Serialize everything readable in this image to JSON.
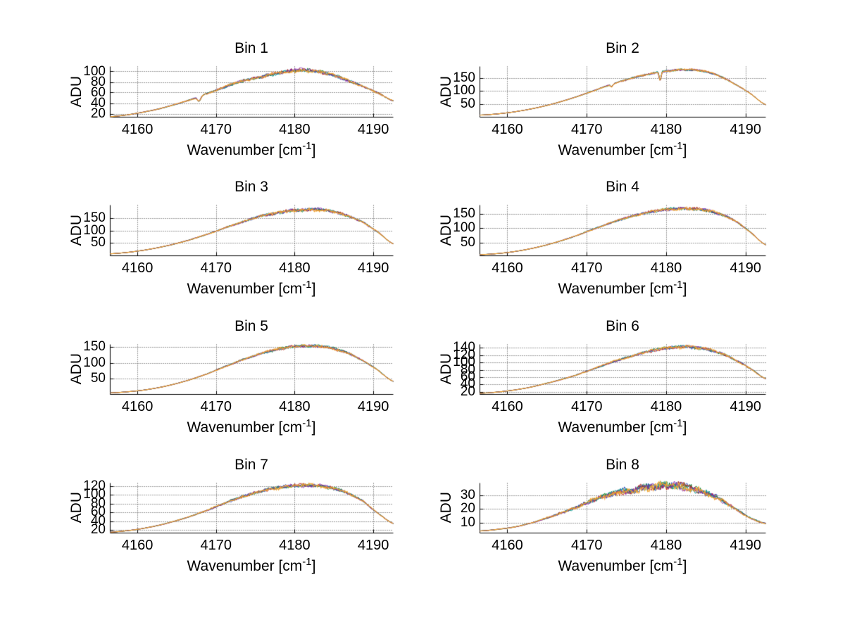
{
  "figure": {
    "background": "#ffffff",
    "axis_color": "#000000",
    "grid_color": "#3c3c3c",
    "line_color": "#f0a22e",
    "under_series_colors": [
      "#2244bb",
      "#118833",
      "#bb2211",
      "#009898",
      "#8822aa"
    ]
  },
  "labels": {
    "ylabel": "ADU",
    "xlabel_pre": "Wavenumber [cm",
    "xlabel_sup": "-1",
    "xlabel_post": "]"
  },
  "chart_data": {
    "type": "line",
    "title": "",
    "xlabel": "Wavenumber [cm^-1]",
    "ylabel": "ADU",
    "grid": true,
    "legend": "none",
    "xlim": [
      4156.5,
      4192.5
    ],
    "xticks": [
      4160,
      4170,
      4180,
      4190
    ],
    "x_grid": [
      4156.5,
      4158.5,
      4160.5,
      4162.5,
      4164.5,
      4166.5,
      4168.5,
      4170.5,
      4172.5,
      4174.5,
      4176.5,
      4178.5,
      4180.5,
      4182.5,
      4184.5,
      4186.5,
      4188.5,
      4190.5,
      4192.5
    ],
    "series_note": "each subplot has 6 nearly-identical overplotted spectra; orange drawn last on top",
    "subplots": [
      {
        "title": "Bin 1",
        "ylim": [
          14,
          110
        ],
        "yticks": [
          20,
          40,
          60,
          80,
          100
        ],
        "envelope": [
          15,
          18,
          23,
          29,
          37,
          46,
          57,
          68,
          79,
          87,
          94,
          99,
          103,
          101,
          95,
          85,
          73,
          60,
          45
        ],
        "noise": 0.45,
        "notches": [
          {
            "x": 4167.8,
            "depth": 9,
            "w": 0.28
          }
        ]
      },
      {
        "title": "Bin 2",
        "ylim": [
          0,
          195
        ],
        "yticks": [
          50,
          100,
          150
        ],
        "envelope": [
          8,
          12,
          19,
          29,
          42,
          58,
          77,
          98,
          120,
          140,
          157,
          170,
          179,
          183,
          178,
          160,
          130,
          92,
          48
        ],
        "noise": 0.35,
        "notches": [
          {
            "x": 4179.2,
            "depth": 34,
            "w": 0.16
          },
          {
            "x": 4173.1,
            "depth": 9,
            "w": 0.18
          }
        ]
      },
      {
        "title": "Bin 3",
        "ylim": [
          0,
          203
        ],
        "yticks": [
          50,
          100,
          150
        ],
        "envelope": [
          8,
          13,
          21,
          32,
          46,
          63,
          83,
          105,
          127,
          148,
          164,
          176,
          183,
          185,
          179,
          162,
          135,
          96,
          48
        ],
        "noise": 0.6,
        "notches": []
      },
      {
        "title": "Bin 4",
        "ylim": [
          8,
          180
        ],
        "yticks": [
          50,
          100,
          150
        ],
        "envelope": [
          12,
          15,
          21,
          30,
          42,
          57,
          75,
          95,
          115,
          133,
          148,
          159,
          166,
          168,
          164,
          152,
          128,
          90,
          45
        ],
        "noise": 0.5,
        "notches": []
      },
      {
        "title": "Bin 5",
        "ylim": [
          0,
          160
        ],
        "yticks": [
          50,
          100,
          150
        ],
        "envelope": [
          5,
          8,
          13,
          21,
          32,
          46,
          63,
          83,
          103,
          121,
          137,
          148,
          154,
          155,
          149,
          134,
          110,
          78,
          42
        ],
        "noise": 0.45,
        "notches": []
      },
      {
        "title": "Bin 6",
        "ylim": [
          14,
          150
        ],
        "yticks": [
          20,
          40,
          60,
          80,
          100,
          120,
          140
        ],
        "envelope": [
          17,
          20,
          25,
          32,
          42,
          53,
          66,
          81,
          97,
          111,
          124,
          134,
          141,
          143,
          139,
          128,
          110,
          85,
          57
        ],
        "noise": 0.45,
        "notches": []
      },
      {
        "title": "Bin 7",
        "ylim": [
          14,
          128
        ],
        "yticks": [
          20,
          40,
          60,
          80,
          100,
          120
        ],
        "envelope": [
          16,
          19,
          24,
          31,
          40,
          51,
          64,
          78,
          92,
          104,
          113,
          119,
          122,
          123,
          118,
          107,
          88,
          60,
          36
        ],
        "noise": 0.45,
        "notches": []
      },
      {
        "title": "Bin 8",
        "ylim": [
          3,
          39
        ],
        "yticks": [
          10,
          20,
          30
        ],
        "envelope": [
          4.5,
          5.5,
          7,
          9.5,
          13,
          17,
          21.5,
          26,
          30,
          33,
          35,
          36.5,
          37,
          36,
          33,
          28,
          21,
          14,
          10
        ],
        "noise": 0.55,
        "notches": []
      }
    ]
  }
}
